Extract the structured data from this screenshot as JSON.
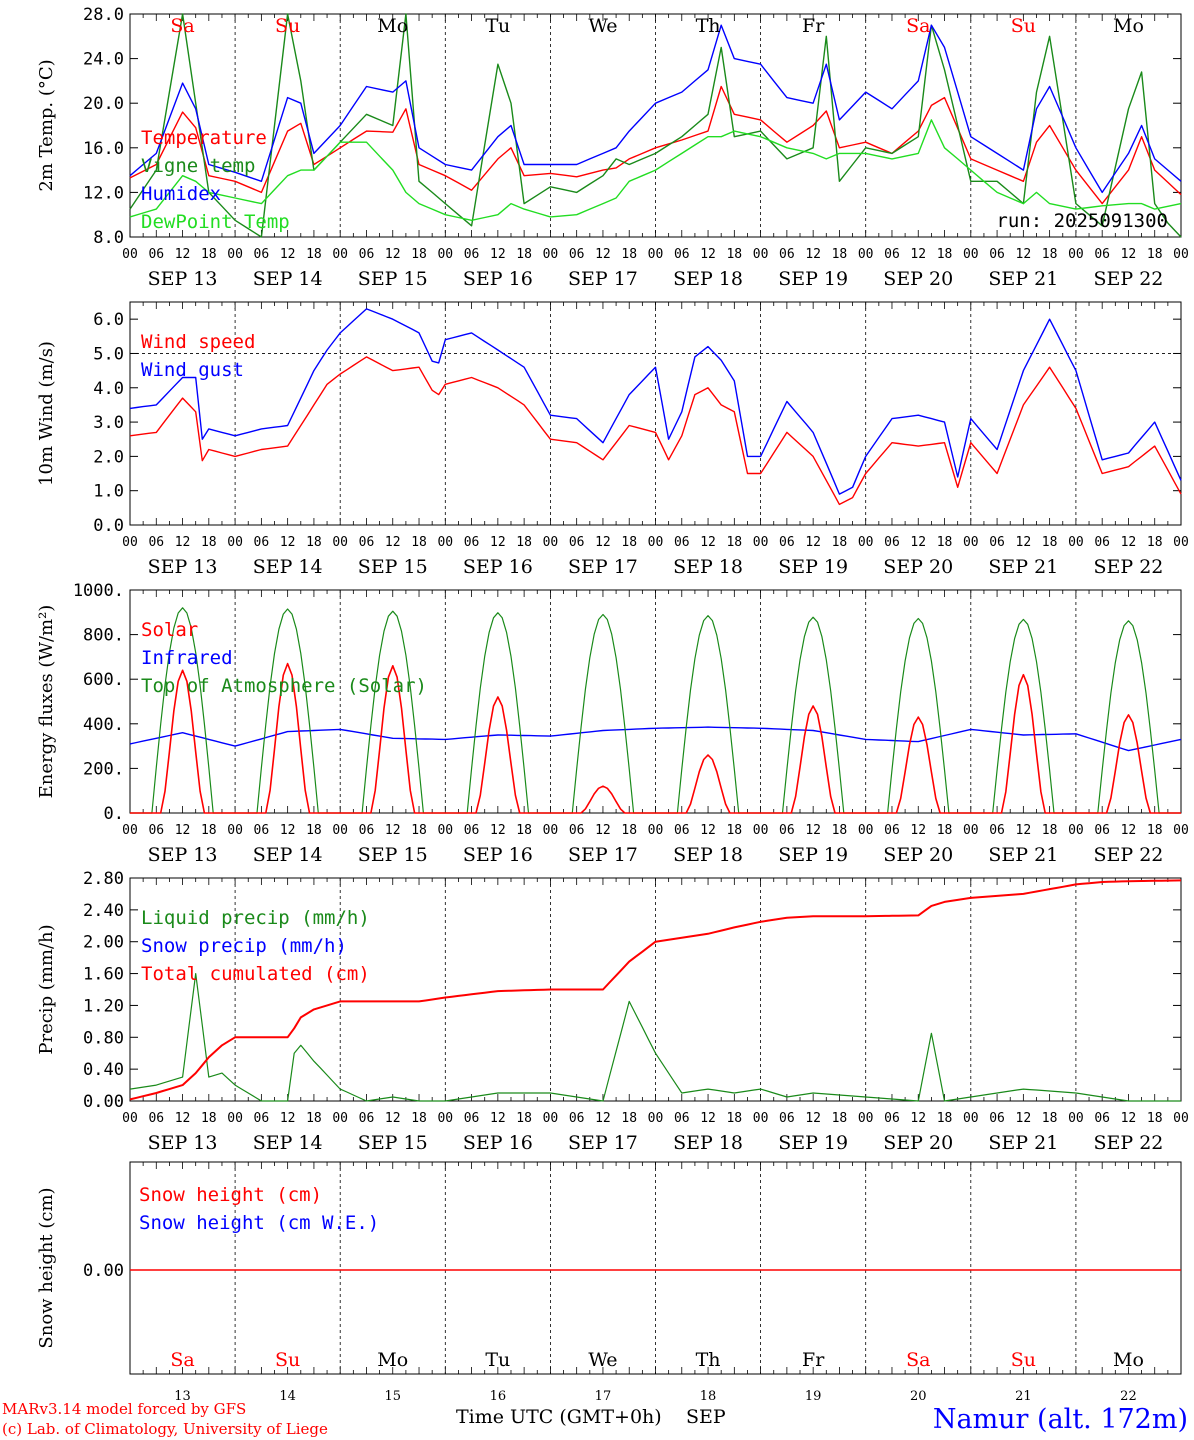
{
  "days": [
    {
      "date": "SEP 13",
      "dom": "13",
      "dow": "Sa",
      "weekend": true
    },
    {
      "date": "SEP 14",
      "dom": "14",
      "dow": "Su",
      "weekend": true
    },
    {
      "date": "SEP 15",
      "dom": "15",
      "dow": "Mo",
      "weekend": false
    },
    {
      "date": "SEP 16",
      "dom": "16",
      "dow": "Tu",
      "weekend": false
    },
    {
      "date": "SEP 17",
      "dom": "17",
      "dow": "We",
      "weekend": false
    },
    {
      "date": "SEP 18",
      "dom": "18",
      "dow": "Th",
      "weekend": false
    },
    {
      "date": "SEP 19",
      "dom": "19",
      "dow": "Fr",
      "weekend": false
    },
    {
      "date": "SEP 20",
      "dom": "20",
      "dow": "Sa",
      "weekend": true
    },
    {
      "date": "SEP 21",
      "dom": "21",
      "dow": "Su",
      "weekend": true
    },
    {
      "date": "SEP 22",
      "dom": "22",
      "dow": "Mo",
      "weekend": false
    }
  ],
  "hour_labels": [
    "00",
    "06",
    "12",
    "18"
  ],
  "last_hour_label": "00",
  "colors": {
    "red": "#ff0000",
    "green": "#1a8a1a",
    "blue": "#0000ff",
    "lightgreen": "#22dd22",
    "weekend": "#ff0000"
  },
  "footer": {
    "model": "MARv3.14 model forced by GFS",
    "lab": "(c) Lab. of Climatology, University of Liege",
    "xlabel": "Time UTC (GMT+0h)",
    "month": "SEP",
    "station": "Namur (alt. 172m)"
  },
  "chart_data": [
    {
      "type": "line",
      "ylabel": "2m Temp. (°C)",
      "ylim": [
        8,
        28
      ],
      "yticks": [
        "8.0",
        "12.0",
        "16.0",
        "20.0",
        "24.0",
        "28.0"
      ],
      "annotation": "run: 2025091300",
      "legend": [
        {
          "name": "Temperature",
          "color": "red"
        },
        {
          "name": "Vigne temp",
          "color": "green"
        },
        {
          "name": "Humidex",
          "color": "blue"
        },
        {
          "name": "DewPoint Temp",
          "color": "lightgreen"
        }
      ],
      "x_hours": [
        0,
        6,
        12,
        15,
        18,
        24,
        30,
        36,
        39,
        42,
        48,
        54,
        60,
        63,
        66,
        72,
        78,
        84,
        87,
        90,
        96,
        102,
        108,
        111,
        114,
        120,
        126,
        132,
        135,
        138,
        144,
        150,
        156,
        159,
        162,
        168,
        174,
        180,
        183,
        186,
        192,
        198,
        204,
        207,
        210,
        216,
        222,
        228,
        231,
        234,
        240
      ],
      "series": [
        {
          "name": "Temperature",
          "color": "red",
          "values": [
            13.3,
            14.5,
            19.2,
            17.8,
            13.5,
            13.0,
            12.0,
            17.5,
            18.2,
            14.5,
            16.0,
            17.5,
            17.4,
            19.5,
            14.5,
            13.5,
            12.2,
            15.0,
            16.0,
            13.5,
            13.7,
            13.4,
            14.0,
            14.2,
            15.0,
            16.0,
            16.7,
            17.5,
            21.5,
            19.0,
            18.5,
            16.5,
            18.0,
            19.3,
            16.0,
            16.5,
            15.5,
            17.5,
            19.8,
            20.5,
            15.0,
            14.0,
            13.0,
            16.5,
            18.0,
            14.0,
            11.0,
            14.0,
            17.0,
            14.0,
            11.8
          ]
        },
        {
          "name": "Vigne temp",
          "color": "green",
          "values": [
            10.5,
            14.0,
            28.0,
            20.0,
            12.0,
            9.5,
            8.0,
            28.0,
            22.0,
            14.0,
            16.5,
            19.0,
            18.0,
            28.0,
            13.0,
            11.0,
            9.0,
            23.5,
            20.0,
            11.0,
            12.5,
            12.0,
            13.5,
            15.0,
            14.5,
            15.5,
            17.0,
            19.0,
            25.0,
            17.0,
            17.5,
            15.0,
            16.0,
            26.0,
            13.0,
            16.0,
            15.5,
            17.0,
            27.0,
            23.0,
            13.0,
            13.0,
            11.0,
            21.0,
            26.0,
            11.0,
            9.0,
            19.5,
            22.8,
            11.0,
            7.5
          ]
        },
        {
          "name": "Humidex",
          "color": "blue",
          "values": [
            13.5,
            15.5,
            21.8,
            19.5,
            14.5,
            13.8,
            13.0,
            20.5,
            20.0,
            15.5,
            18.0,
            21.5,
            21.0,
            22.0,
            16.0,
            14.5,
            14.0,
            17.0,
            18.0,
            14.5,
            14.5,
            14.5,
            15.5,
            16.0,
            17.5,
            20.0,
            21.0,
            23.0,
            27.0,
            24.0,
            23.5,
            20.5,
            20.0,
            23.5,
            18.5,
            21.0,
            19.5,
            22.0,
            27.0,
            25.0,
            17.0,
            15.5,
            14.0,
            19.5,
            21.5,
            16.0,
            12.0,
            15.5,
            18.0,
            15.0,
            13.0
          ]
        },
        {
          "name": "DewPoint Temp",
          "color": "lightgreen",
          "values": [
            9.8,
            10.5,
            13.5,
            13.0,
            12.0,
            11.5,
            11.0,
            13.5,
            14.0,
            14.0,
            16.5,
            16.5,
            14.0,
            12.0,
            11.0,
            10.0,
            9.5,
            10.0,
            11.0,
            10.5,
            9.8,
            10.0,
            11.0,
            11.5,
            13.0,
            14.0,
            15.5,
            17.0,
            17.0,
            17.5,
            17.0,
            16.0,
            15.5,
            15.0,
            15.5,
            15.5,
            15.0,
            15.5,
            18.5,
            16.0,
            14.0,
            12.0,
            11.0,
            12.0,
            11.0,
            10.5,
            10.8,
            11.0,
            11.0,
            10.5,
            11.0
          ]
        }
      ]
    },
    {
      "type": "line",
      "ylabel": "10m Wind (m/s)",
      "ylim": [
        0,
        6.5
      ],
      "yticks": [
        "0.0",
        "1.0",
        "2.0",
        "3.0",
        "4.0",
        "5.0",
        "6.0"
      ],
      "reference_line": 5.0,
      "legend": [
        {
          "name": "Wind speed",
          "color": "red"
        },
        {
          "name": "Wind gust",
          "color": "blue"
        }
      ],
      "x_hours": [
        0,
        6,
        12,
        15,
        17,
        18,
        24,
        30,
        36,
        42,
        45,
        48,
        54,
        60,
        66,
        70,
        72,
        78,
        84,
        90,
        96,
        102,
        108,
        114,
        120,
        123,
        126,
        129,
        132,
        135,
        138,
        141,
        144,
        150,
        156,
        162,
        165,
        168,
        174,
        180,
        186,
        189,
        192,
        198,
        204,
        210,
        216,
        222,
        228,
        234,
        240
      ],
      "series": [
        {
          "name": "Wind speed",
          "color": "red",
          "values": [
            2.6,
            2.7,
            3.7,
            3.3,
            1.4,
            2.2,
            2.0,
            2.2,
            2.3,
            3.5,
            4.1,
            4.4,
            4.9,
            4.5,
            4.6,
            3.7,
            4.1,
            4.3,
            4.0,
            3.5,
            2.5,
            2.4,
            1.9,
            2.9,
            2.7,
            1.9,
            2.6,
            3.8,
            4.0,
            3.5,
            3.3,
            1.5,
            1.5,
            2.7,
            2.0,
            0.6,
            0.8,
            1.5,
            2.4,
            2.3,
            2.4,
            1.1,
            2.4,
            1.5,
            3.5,
            4.6,
            3.4,
            1.5,
            1.7,
            2.3,
            0.9
          ]
        },
        {
          "name": "Wind gust",
          "color": "blue",
          "values": [
            3.4,
            3.5,
            4.3,
            4.3,
            1.9,
            2.8,
            2.6,
            2.8,
            2.9,
            4.5,
            5.1,
            5.6,
            6.3,
            6.0,
            5.6,
            4.5,
            5.4,
            5.6,
            5.1,
            4.6,
            3.2,
            3.1,
            2.4,
            3.8,
            4.6,
            2.5,
            3.3,
            4.9,
            5.2,
            4.8,
            4.2,
            2.0,
            2.0,
            3.6,
            2.7,
            0.9,
            1.1,
            2.0,
            3.1,
            3.2,
            3.0,
            1.4,
            3.1,
            2.2,
            4.5,
            6.0,
            4.5,
            1.9,
            2.1,
            3.0,
            1.3
          ]
        }
      ]
    },
    {
      "type": "line",
      "ylabel": "Energy fluxes (W/m²)",
      "ylim": [
        0,
        1000
      ],
      "yticks": [
        "0.",
        "200.",
        "400.",
        "600.",
        "800.",
        "1000."
      ],
      "legend": [
        {
          "name": "Solar",
          "color": "red"
        },
        {
          "name": "Infrared",
          "color": "blue"
        },
        {
          "name": "Top of Atmosphere (Solar)",
          "color": "green"
        }
      ],
      "toa_peaks": [
        920,
        915,
        905,
        898,
        890,
        885,
        878,
        872,
        868,
        862
      ],
      "solar_peaks": [
        640,
        670,
        660,
        520,
        120,
        260,
        480,
        430,
        620,
        440
      ],
      "infrared": {
        "x_hours": [
          0,
          12,
          24,
          36,
          48,
          60,
          72,
          84,
          96,
          108,
          120,
          132,
          144,
          156,
          168,
          180,
          192,
          204,
          216,
          228,
          240
        ],
        "values": [
          310,
          360,
          300,
          365,
          375,
          335,
          330,
          350,
          345,
          370,
          380,
          385,
          380,
          370,
          330,
          320,
          375,
          350,
          355,
          280,
          330
        ]
      }
    },
    {
      "type": "line",
      "ylabel": "Precip (mm/h)",
      "ylim": [
        0,
        2.8
      ],
      "yticks": [
        "0.00",
        "0.40",
        "0.80",
        "1.20",
        "1.60",
        "2.00",
        "2.40",
        "2.80"
      ],
      "legend": [
        {
          "name": "Liquid precip (mm/h)",
          "color": "green"
        },
        {
          "name": "Snow precip (mm/h)",
          "color": "blue"
        },
        {
          "name": "Total cumulated (cm)",
          "color": "red"
        }
      ],
      "x_hours": [
        0,
        6,
        12,
        15,
        18,
        21,
        24,
        30,
        36,
        38,
        39,
        42,
        48,
        54,
        60,
        66,
        72,
        84,
        96,
        108,
        114,
        120,
        126,
        132,
        138,
        144,
        150,
        156,
        168,
        180,
        183,
        186,
        192,
        204,
        216,
        222,
        228,
        240
      ],
      "series": [
        {
          "name": "Liquid precip (mm/h)",
          "color": "green",
          "values": [
            0.15,
            0.2,
            0.3,
            1.6,
            0.3,
            0.35,
            0.2,
            0.0,
            0.0,
            0.8,
            0.7,
            0.5,
            0.15,
            0.0,
            0.05,
            0.0,
            0.0,
            0.1,
            0.1,
            0.0,
            1.25,
            0.6,
            0.1,
            0.15,
            0.1,
            0.15,
            0.05,
            0.1,
            0.05,
            0.0,
            0.85,
            0.0,
            0.05,
            0.15,
            0.1,
            0.05,
            0.0,
            0.0
          ]
        },
        {
          "name": "Total cumulated (cm)",
          "color": "red",
          "values": [
            0.02,
            0.1,
            0.2,
            0.35,
            0.55,
            0.7,
            0.8,
            0.8,
            0.8,
            0.95,
            1.05,
            1.15,
            1.25,
            1.25,
            1.25,
            1.25,
            1.3,
            1.38,
            1.4,
            1.4,
            1.75,
            2.0,
            2.05,
            2.1,
            2.18,
            2.25,
            2.3,
            2.32,
            2.32,
            2.33,
            2.45,
            2.5,
            2.55,
            2.6,
            2.72,
            2.75,
            2.76,
            2.77
          ]
        }
      ]
    },
    {
      "type": "line",
      "ylabel": "Snow height (cm)",
      "yticks": [
        "0.00"
      ],
      "legend": [
        {
          "name": "Snow height (cm)",
          "color": "red"
        },
        {
          "name": "Snow height (cm W.E.)",
          "color": "blue"
        }
      ],
      "x_hours": [
        0,
        240
      ],
      "series": [
        {
          "name": "Snow height (cm)",
          "color": "red",
          "values": [
            0,
            0
          ]
        }
      ]
    }
  ]
}
